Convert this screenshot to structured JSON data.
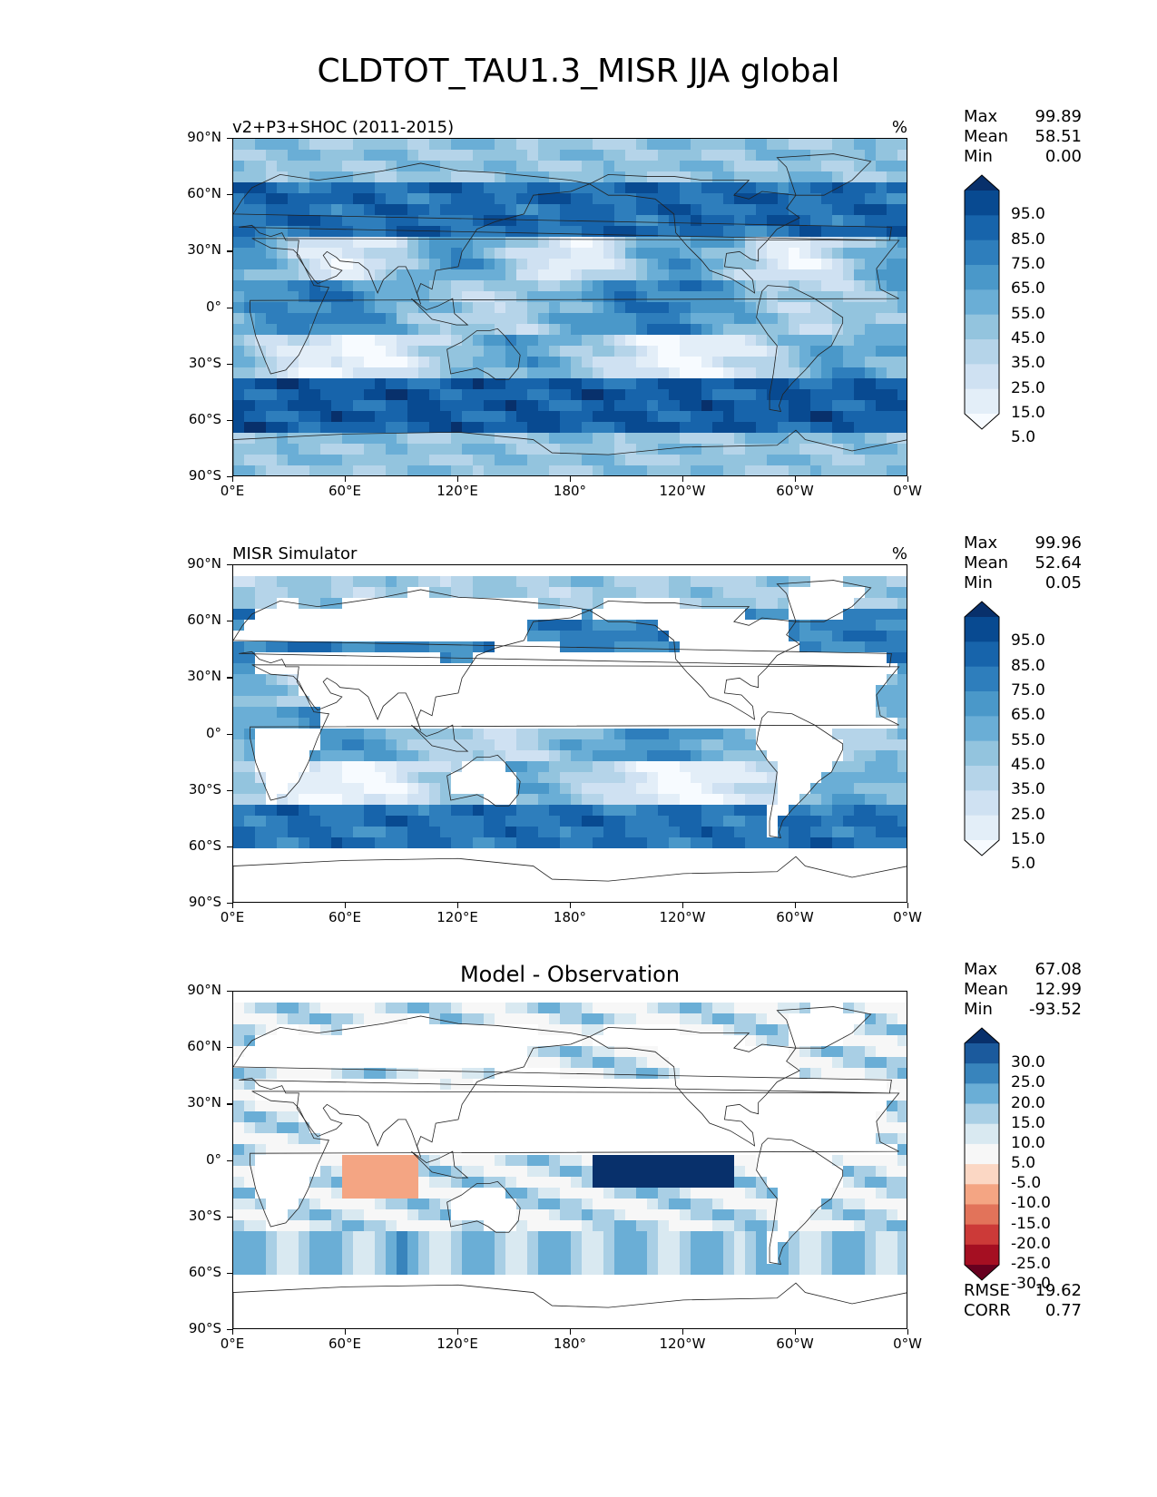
{
  "title": "CLDTOT_TAU1.3_MISR JJA global",
  "axes": {
    "y_ticks": [
      "90°N",
      "60°N",
      "30°N",
      "0°",
      "30°S",
      "60°S",
      "90°S"
    ],
    "x_ticks": [
      "0°E",
      "60°E",
      "120°E",
      "180°",
      "120°W",
      "60°W",
      "0°W"
    ]
  },
  "panels": [
    {
      "title_left": "v2+P3+SHOC (2011-2015)",
      "title_center": "",
      "units": "%",
      "stats": {
        "max_label": "Max",
        "max": "99.89",
        "mean_label": "Mean",
        "mean": "58.51",
        "min_label": "Min",
        "min": "0.00"
      },
      "colorbar": {
        "labels": [
          "95.0",
          "85.0",
          "75.0",
          "65.0",
          "55.0",
          "45.0",
          "35.0",
          "25.0",
          "15.0",
          "5.0"
        ]
      }
    },
    {
      "title_left": "MISR Simulator",
      "title_center": "",
      "units": "%",
      "stats": {
        "max_label": "Max",
        "max": "99.96",
        "mean_label": "Mean",
        "mean": "52.64",
        "min_label": "Min",
        "min": "0.05"
      },
      "colorbar": {
        "labels": [
          "95.0",
          "85.0",
          "75.0",
          "65.0",
          "55.0",
          "45.0",
          "35.0",
          "25.0",
          "15.0",
          "5.0"
        ]
      }
    },
    {
      "title_left": "",
      "title_center": "Model - Observation",
      "units": "",
      "stats": {
        "max_label": "Max",
        "max": "67.08",
        "mean_label": "Mean",
        "mean": "12.99",
        "min_label": "Min",
        "min": "-93.52"
      },
      "colorbar": {
        "labels": [
          "30.0",
          "25.0",
          "20.0",
          "15.0",
          "10.0",
          "5.0",
          "-5.0",
          "-10.0",
          "-15.0",
          "-20.0",
          "-25.0",
          "-30.0"
        ]
      },
      "rmse_label": "RMSE",
      "rmse": "19.62",
      "corr_label": "CORR",
      "corr": "0.77"
    }
  ],
  "colors": {
    "blues": [
      "#f7fbff",
      "#e3eef8",
      "#cfe1f2",
      "#b5d4e9",
      "#93c4de",
      "#6aaed6",
      "#4a98c9",
      "#2e7ebc",
      "#1764ab",
      "#084a91",
      "#08306b"
    ],
    "diverging": [
      "#67001f",
      "#a50f22",
      "#cc3a38",
      "#e2735a",
      "#f4a583",
      "#fbd7c4",
      "#f7f7f7",
      "#d9e9f1",
      "#a9cfe5",
      "#6aaed6",
      "#3884bc",
      "#1b5a9d",
      "#08306b"
    ]
  },
  "chart_data": [
    {
      "type": "heatmap",
      "title": "v2+P3+SHOC (2011-2015)",
      "units": "%",
      "xlabel": "",
      "ylabel": "",
      "x_range": [
        "0°E",
        "0°W"
      ],
      "y_range": [
        "90°S",
        "90°N"
      ],
      "levels": [
        5,
        15,
        25,
        35,
        45,
        55,
        65,
        75,
        85,
        95
      ],
      "stats": {
        "max": 99.89,
        "mean": 58.51,
        "min": 0.0
      }
    },
    {
      "type": "heatmap",
      "title": "MISR Simulator",
      "units": "%",
      "x_range": [
        "0°E",
        "0°W"
      ],
      "y_range": [
        "90°S",
        "90°N"
      ],
      "levels": [
        5,
        15,
        25,
        35,
        45,
        55,
        65,
        75,
        85,
        95
      ],
      "stats": {
        "max": 99.96,
        "mean": 52.64,
        "min": 0.05
      }
    },
    {
      "type": "heatmap",
      "title": "Model - Observation",
      "x_range": [
        "0°E",
        "0°W"
      ],
      "y_range": [
        "90°S",
        "90°N"
      ],
      "levels": [
        -30,
        -25,
        -20,
        -15,
        -10,
        -5,
        5,
        10,
        15,
        20,
        25,
        30
      ],
      "stats": {
        "max": 67.08,
        "mean": 12.99,
        "min": -93.52,
        "rmse": 19.62,
        "corr": 0.77
      }
    }
  ]
}
